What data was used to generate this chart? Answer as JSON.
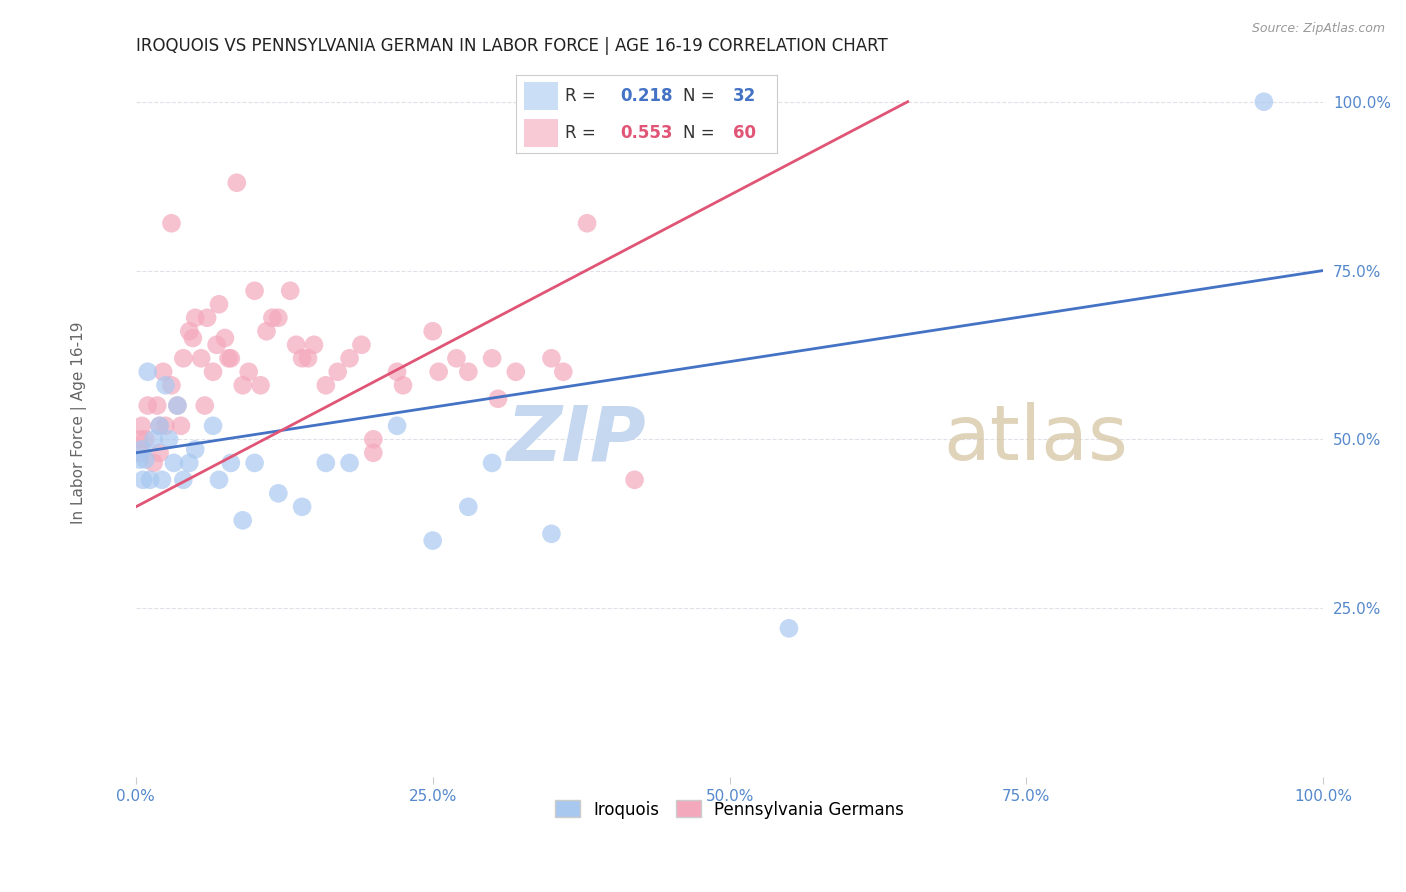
{
  "title": "IROQUOIS VS PENNSYLVANIA GERMAN IN LABOR FORCE | AGE 16-19 CORRELATION CHART",
  "source": "Source: ZipAtlas.com",
  "ylabel": "In Labor Force | Age 16-19",
  "iroquois_R": 0.218,
  "iroquois_N": 32,
  "penn_R": 0.553,
  "penn_N": 60,
  "iroquois_color": "#A8C8F0",
  "penn_color": "#F4A8BC",
  "iroquois_line_color": "#4472C4",
  "penn_line_color": "#E05575",
  "watermark_zip_color": "#C5D8F0",
  "watermark_atlas_color": "#D8C8A8",
  "background_color": "#FFFFFF",
  "grid_color": "#E0E0E8",
  "tick_color": "#5588CC",
  "iroquois_x": [
    1.0,
    2.5,
    3.5,
    0.5,
    0.8,
    1.5,
    2.0,
    2.8,
    3.2,
    4.0,
    5.0,
    6.5,
    8.0,
    10.0,
    12.0,
    14.0,
    7.0,
    9.0,
    16.0,
    18.0,
    22.0,
    25.0,
    28.0,
    30.0,
    35.0,
    55.0,
    95.0,
    0.3,
    0.6,
    1.2,
    2.2,
    4.5
  ],
  "iroquois_y": [
    60.0,
    58.0,
    55.0,
    48.5,
    47.0,
    50.0,
    52.0,
    50.0,
    46.5,
    44.0,
    48.5,
    52.0,
    46.5,
    46.5,
    42.0,
    40.0,
    44.0,
    38.0,
    46.5,
    46.5,
    52.0,
    35.0,
    40.0,
    46.5,
    36.0,
    22.0,
    100.0,
    47.0,
    44.0,
    44.0,
    44.0,
    46.5
  ],
  "penn_x": [
    0.3,
    0.5,
    0.8,
    1.0,
    1.5,
    2.0,
    2.5,
    3.0,
    3.5,
    4.0,
    4.5,
    5.0,
    5.5,
    6.0,
    6.5,
    7.0,
    7.5,
    8.0,
    9.0,
    10.0,
    11.0,
    12.0,
    13.0,
    14.0,
    15.0,
    16.0,
    18.0,
    20.0,
    22.0,
    25.0,
    28.0,
    30.0,
    35.0,
    38.0,
    42.0,
    3.0,
    8.5,
    19.0,
    0.4,
    1.8,
    2.3,
    4.8,
    6.8,
    9.5,
    11.5,
    14.5,
    17.0,
    22.5,
    27.0,
    32.0,
    2.0,
    3.8,
    5.8,
    7.8,
    10.5,
    13.5,
    20.0,
    25.5,
    30.5,
    36.0
  ],
  "penn_y": [
    50.0,
    52.0,
    50.0,
    55.0,
    46.5,
    52.0,
    52.0,
    58.0,
    55.0,
    62.0,
    66.0,
    68.0,
    62.0,
    68.0,
    60.0,
    70.0,
    65.0,
    62.0,
    58.0,
    72.0,
    66.0,
    68.0,
    72.0,
    62.0,
    64.0,
    58.0,
    62.0,
    50.0,
    60.0,
    66.0,
    60.0,
    62.0,
    62.0,
    82.0,
    44.0,
    82.0,
    88.0,
    64.0,
    48.0,
    55.0,
    60.0,
    65.0,
    64.0,
    60.0,
    68.0,
    62.0,
    60.0,
    58.0,
    62.0,
    60.0,
    48.0,
    52.0,
    55.0,
    62.0,
    58.0,
    64.0,
    48.0,
    60.0,
    56.0,
    60.0
  ]
}
